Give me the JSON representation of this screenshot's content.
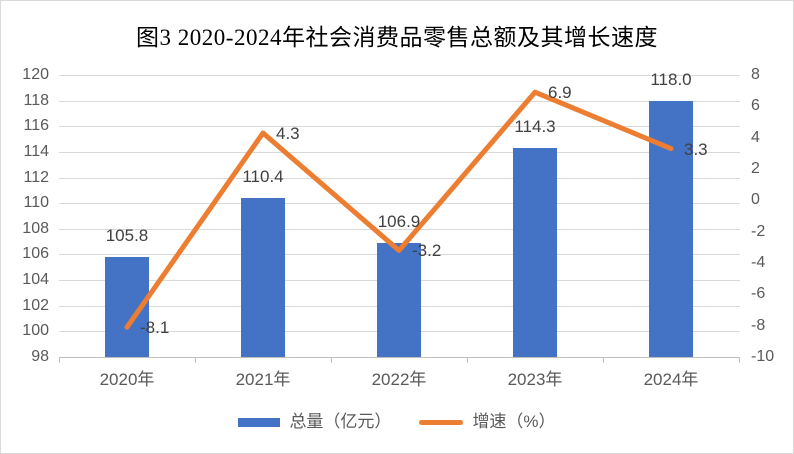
{
  "title": "图3  2020-2024年社会消费品零售总额及其增长速度",
  "chart_data": {
    "type": "bar",
    "subtype": "bar-line-combo",
    "title": "图3  2020-2024年社会消费品零售总额及其增长速度",
    "categories": [
      "2020年",
      "2021年",
      "2022年",
      "2023年",
      "2024年"
    ],
    "series": [
      {
        "name": "总量（亿元）",
        "type": "bar",
        "axis": "left",
        "values": [
          105.8,
          110.4,
          106.9,
          114.3,
          118.0
        ],
        "labels": [
          "105.8",
          "110.4",
          "106.9",
          "114.3",
          "118.0"
        ],
        "color": "#4472C4"
      },
      {
        "name": "增速（%）",
        "type": "line",
        "axis": "right",
        "values": [
          -8.1,
          4.3,
          -3.2,
          6.9,
          3.3
        ],
        "labels": [
          "-8.1",
          "4.3",
          "-3.2",
          "6.9",
          "3.3"
        ],
        "color": "#ED7D31"
      }
    ],
    "left_axis": {
      "min": 98,
      "max": 120,
      "step": 2,
      "tick_labels": [
        "120",
        "118",
        "116",
        "114",
        "112",
        "110",
        "108",
        "106",
        "104",
        "102",
        "100",
        "98"
      ]
    },
    "right_axis": {
      "min": -10,
      "max": 8,
      "step": 2,
      "tick_labels": [
        "8",
        "6",
        "4",
        "2",
        "0",
        "-2",
        "-4",
        "-6",
        "-8",
        "-10"
      ]
    },
    "grid": "horizontal",
    "legend_position": "bottom"
  },
  "legend": {
    "items": [
      {
        "label": "总量（亿元）",
        "swatch": "bar",
        "color": "#4472C4"
      },
      {
        "label": "增速（%）",
        "swatch": "line",
        "color": "#ED7D31"
      }
    ]
  },
  "colors": {
    "bar": "#4472C4",
    "line": "#ED7D31",
    "gridline": "#D9D9D9",
    "axis_line": "#BFBFBF",
    "tick_text": "#595959",
    "data_label_text": "#404040",
    "title_text": "#000000",
    "background": "#FFFFFF",
    "border": "#D9D9D9"
  }
}
